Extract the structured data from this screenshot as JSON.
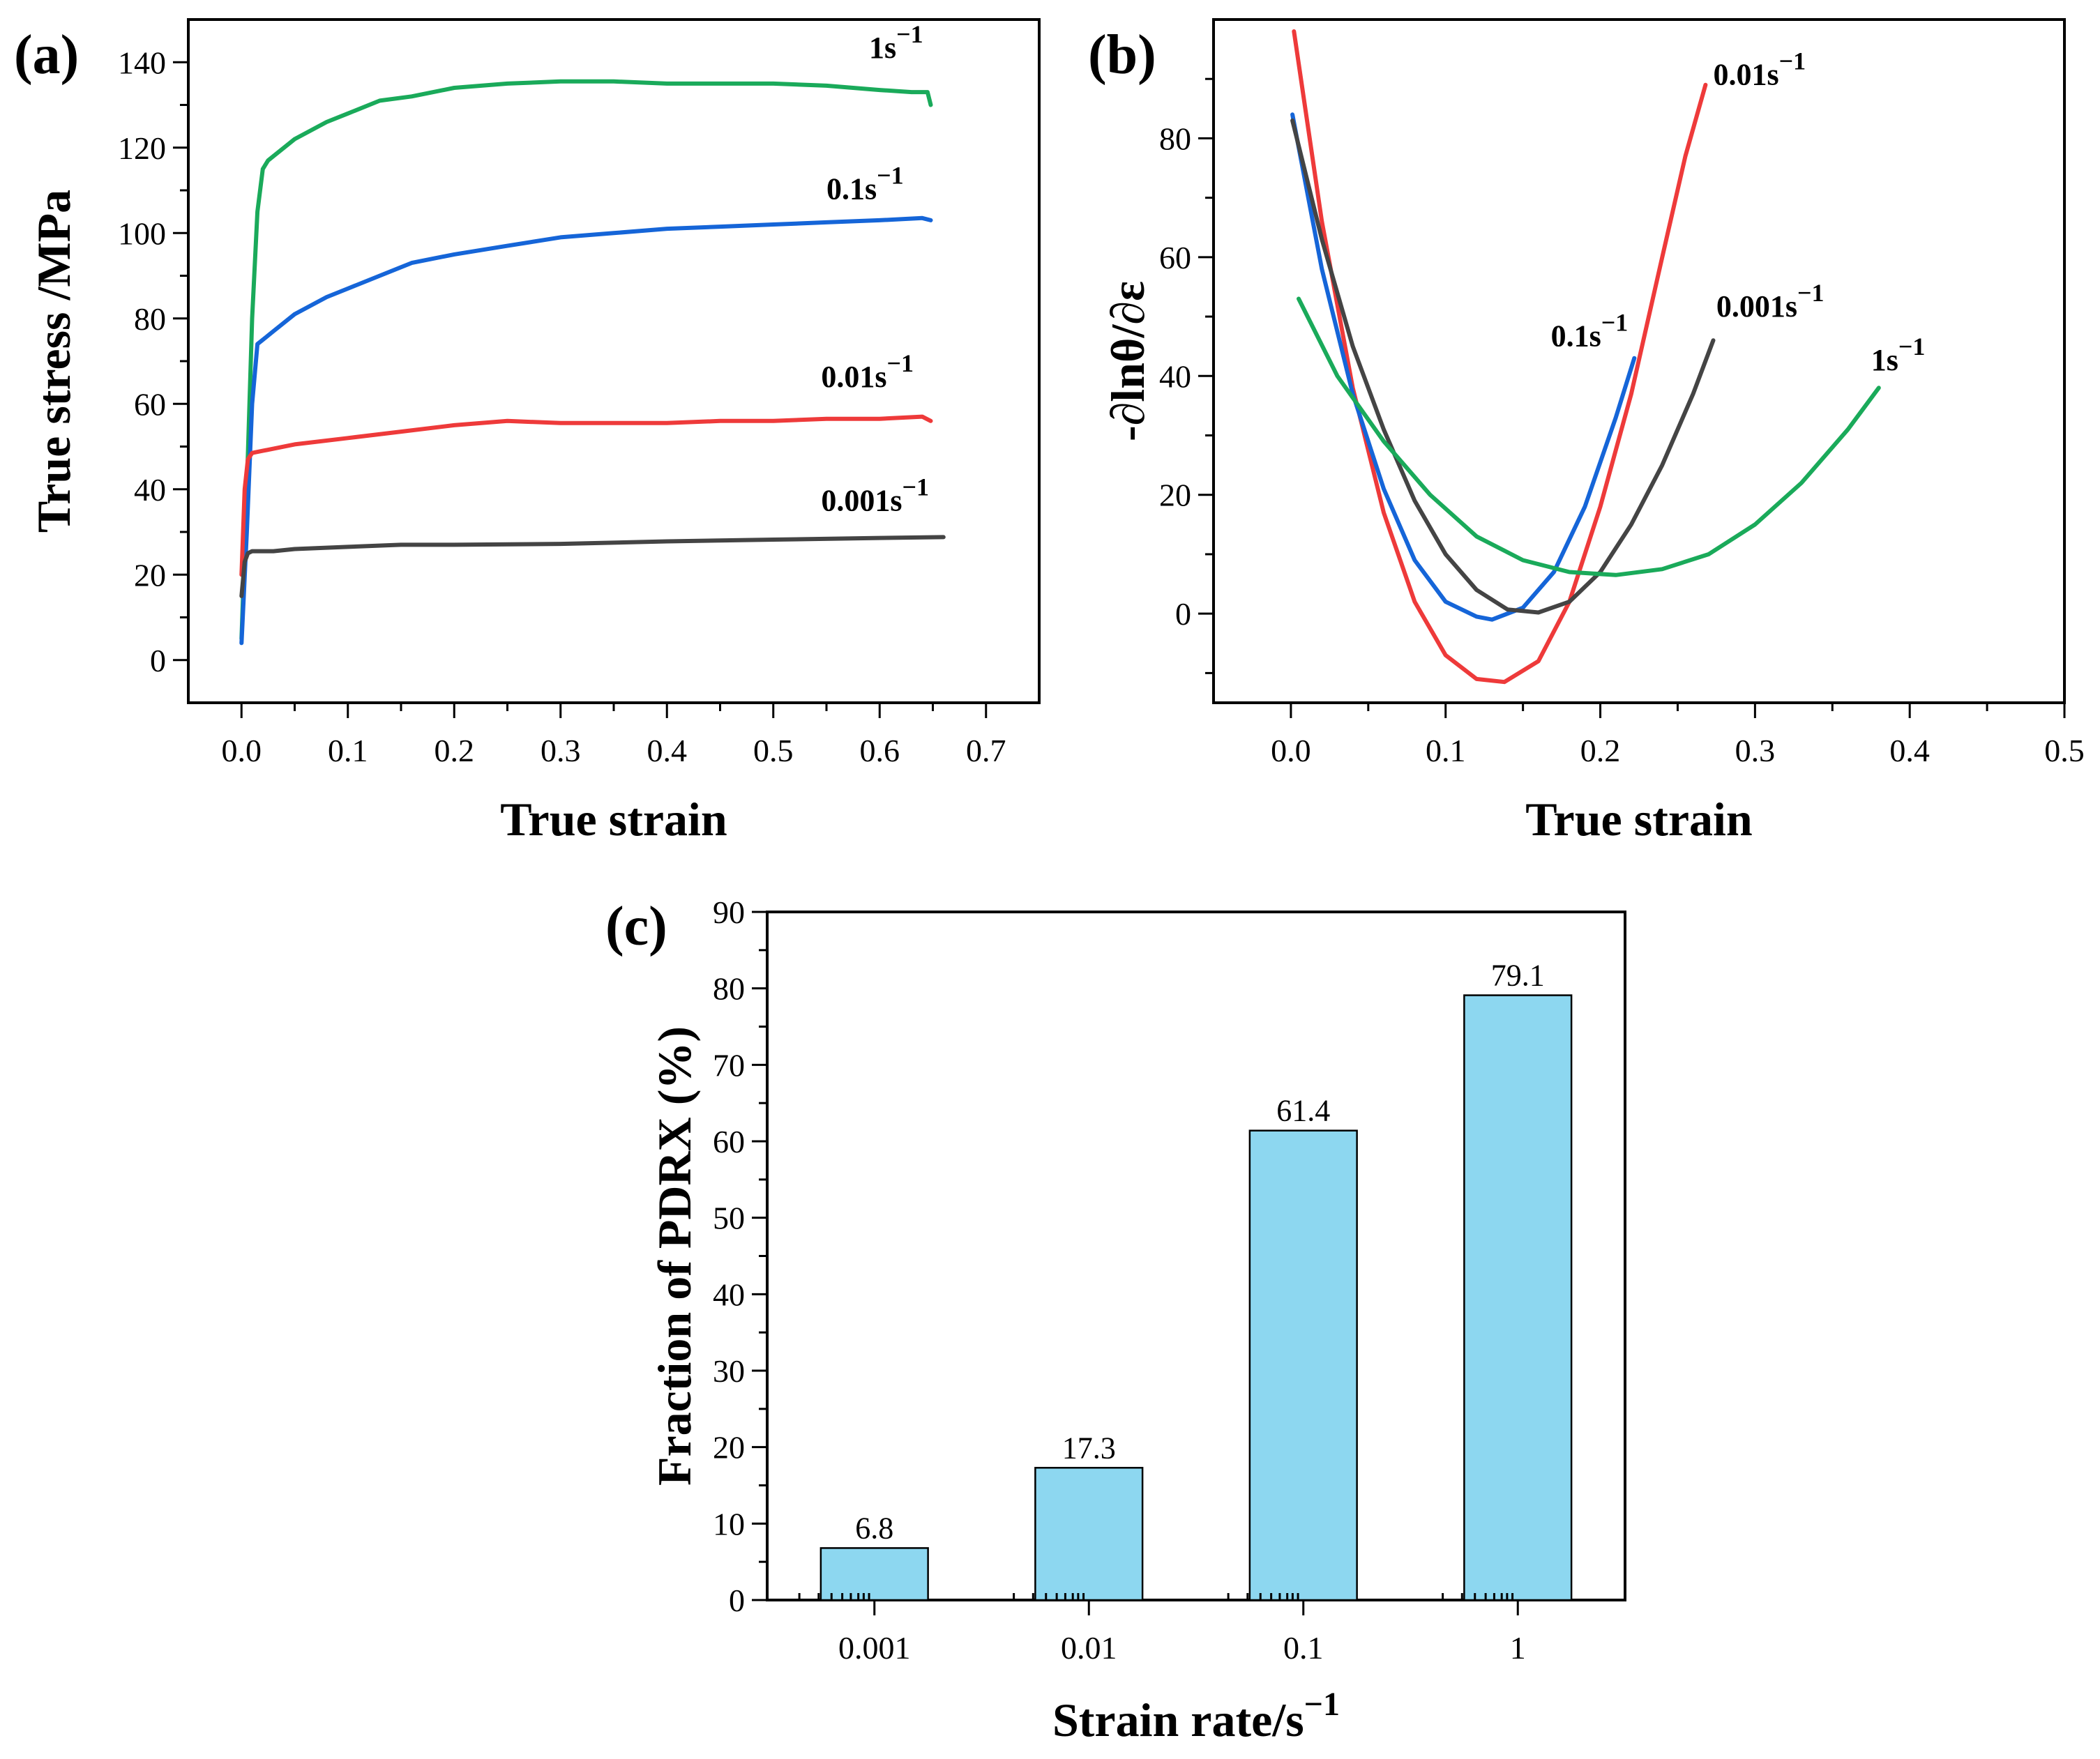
{
  "chart_data": [
    {
      "id": "a",
      "type": "line",
      "panel_label": "(a)",
      "xlabel": "True strain",
      "ylabel": "True stress /MPa",
      "xlim": [
        -0.05,
        0.75
      ],
      "ylim": [
        -10,
        150
      ],
      "xticks": [
        "0.0",
        "0.1",
        "0.2",
        "0.3",
        "0.4",
        "0.5",
        "0.6",
        "0.7"
      ],
      "yticks": [
        "0",
        "20",
        "40",
        "60",
        "80",
        "100",
        "120",
        "140"
      ],
      "series": [
        {
          "name": "1s",
          "sup": "−1",
          "color": "#1aaa5a",
          "x": [
            0,
            0.005,
            0.01,
            0.015,
            0.02,
            0.025,
            0.03,
            0.05,
            0.08,
            0.1,
            0.13,
            0.16,
            0.2,
            0.25,
            0.3,
            0.35,
            0.4,
            0.45,
            0.5,
            0.55,
            0.6,
            0.63,
            0.645,
            0.648
          ],
          "y": [
            5,
            40,
            80,
            105,
            115,
            117,
            118,
            122,
            126,
            128,
            131,
            132,
            134,
            135,
            135.5,
            135.5,
            135,
            135,
            135,
            134.5,
            133.5,
            133,
            133,
            130
          ],
          "label_x": 0.59,
          "label_y": 141
        },
        {
          "name": "0.1s",
          "sup": "−1",
          "color": "#1565d8",
          "x": [
            0,
            0.005,
            0.01,
            0.015,
            0.02,
            0.03,
            0.05,
            0.08,
            0.1,
            0.13,
            0.16,
            0.2,
            0.25,
            0.3,
            0.35,
            0.4,
            0.45,
            0.5,
            0.55,
            0.6,
            0.64,
            0.648
          ],
          "y": [
            4,
            30,
            60,
            74,
            75,
            77,
            81,
            85,
            87,
            90,
            93,
            95,
            97,
            99,
            100,
            101,
            101.5,
            102,
            102.5,
            103,
            103.5,
            103
          ],
          "label_x": 0.55,
          "label_y": 108
        },
        {
          "name": "0.01s",
          "sup": "−1",
          "color": "#ee3a3a",
          "x": [
            0,
            0.003,
            0.006,
            0.01,
            0.02,
            0.05,
            0.1,
            0.15,
            0.2,
            0.25,
            0.3,
            0.35,
            0.4,
            0.45,
            0.5,
            0.55,
            0.6,
            0.64,
            0.648
          ],
          "y": [
            20,
            40,
            47,
            48.5,
            49,
            50.5,
            52,
            53.5,
            55,
            56,
            55.5,
            55.5,
            55.5,
            56,
            56,
            56.5,
            56.5,
            57,
            56
          ],
          "label_x": 0.545,
          "label_y": 64
        },
        {
          "name": "0.001s",
          "sup": "−1",
          "color": "#444444",
          "x": [
            0,
            0.003,
            0.006,
            0.01,
            0.03,
            0.05,
            0.1,
            0.15,
            0.2,
            0.3,
            0.4,
            0.5,
            0.6,
            0.66
          ],
          "y": [
            15,
            23,
            25,
            25.5,
            25.5,
            26,
            26.5,
            27,
            27,
            27.2,
            27.8,
            28.2,
            28.6,
            28.8
          ],
          "label_x": 0.545,
          "label_y": 35
        }
      ]
    },
    {
      "id": "b",
      "type": "line",
      "panel_label": "(b)",
      "xlabel": "True strain",
      "ylabel": "-∂lnθ/∂ε",
      "xlim": [
        -0.05,
        0.5
      ],
      "ylim": [
        -15,
        100
      ],
      "xticks": [
        "0.0",
        "0.1",
        "0.2",
        "0.3",
        "0.4",
        "0.5"
      ],
      "yticks": [
        "0",
        "20",
        "40",
        "60",
        "80"
      ],
      "series": [
        {
          "name": "0.01s",
          "sup": "−1",
          "color": "#ee3a3a",
          "x": [
            0.002,
            0.02,
            0.04,
            0.06,
            0.08,
            0.1,
            0.12,
            0.138,
            0.16,
            0.18,
            0.2,
            0.22,
            0.24,
            0.255,
            0.268
          ],
          "y": [
            98,
            66,
            38,
            17,
            2,
            -7,
            -11,
            -11.5,
            -8,
            2,
            18,
            37,
            60,
            77,
            89
          ],
          "label_x": 0.273,
          "label_y": 89
        },
        {
          "name": "0.1s",
          "sup": "−1",
          "color": "#1565d8",
          "x": [
            0.001,
            0.02,
            0.04,
            0.06,
            0.08,
            0.1,
            0.12,
            0.13,
            0.15,
            0.17,
            0.19,
            0.21,
            0.222
          ],
          "y": [
            84,
            58,
            37,
            21,
            9,
            2,
            -0.5,
            -1,
            1,
            7,
            18,
            33,
            43
          ],
          "label_x": 0.168,
          "label_y": 45
        },
        {
          "name": "0.001s",
          "sup": "−1",
          "color": "#444444",
          "x": [
            0.001,
            0.02,
            0.04,
            0.06,
            0.08,
            0.1,
            0.12,
            0.14,
            0.16,
            0.18,
            0.2,
            0.22,
            0.24,
            0.26,
            0.273
          ],
          "y": [
            83,
            63,
            45,
            31,
            19,
            10,
            4,
            0.7,
            0.2,
            2,
            7,
            15,
            25,
            37,
            46
          ],
          "label_x": 0.275,
          "label_y": 50
        },
        {
          "name": "1s",
          "sup": "−1",
          "color": "#1aaa5a",
          "x": [
            0.005,
            0.03,
            0.06,
            0.09,
            0.12,
            0.15,
            0.18,
            0.21,
            0.24,
            0.27,
            0.3,
            0.33,
            0.36,
            0.38
          ],
          "y": [
            53,
            40,
            29,
            20,
            13,
            9,
            7,
            6.5,
            7.5,
            10,
            15,
            22,
            31,
            38
          ],
          "label_x": 0.375,
          "label_y": 41
        }
      ]
    },
    {
      "id": "c",
      "type": "bar",
      "panel_label": "(c)",
      "xlabel": "Strain rate/s",
      "xlabel_sup": "−1",
      "ylabel": "Fraction of  PDRX (%)",
      "categories": [
        "0.001",
        "0.01",
        "0.1",
        "1"
      ],
      "values": [
        6.8,
        17.3,
        61.4,
        79.1
      ],
      "value_labels": [
        "6.8",
        "17.3",
        "61.4",
        "79.1"
      ],
      "ylim": [
        0,
        90
      ],
      "yticks": [
        "0",
        "10",
        "20",
        "30",
        "40",
        "50",
        "60",
        "70",
        "80",
        "90"
      ],
      "bar_color": "#8dd7f0"
    }
  ]
}
